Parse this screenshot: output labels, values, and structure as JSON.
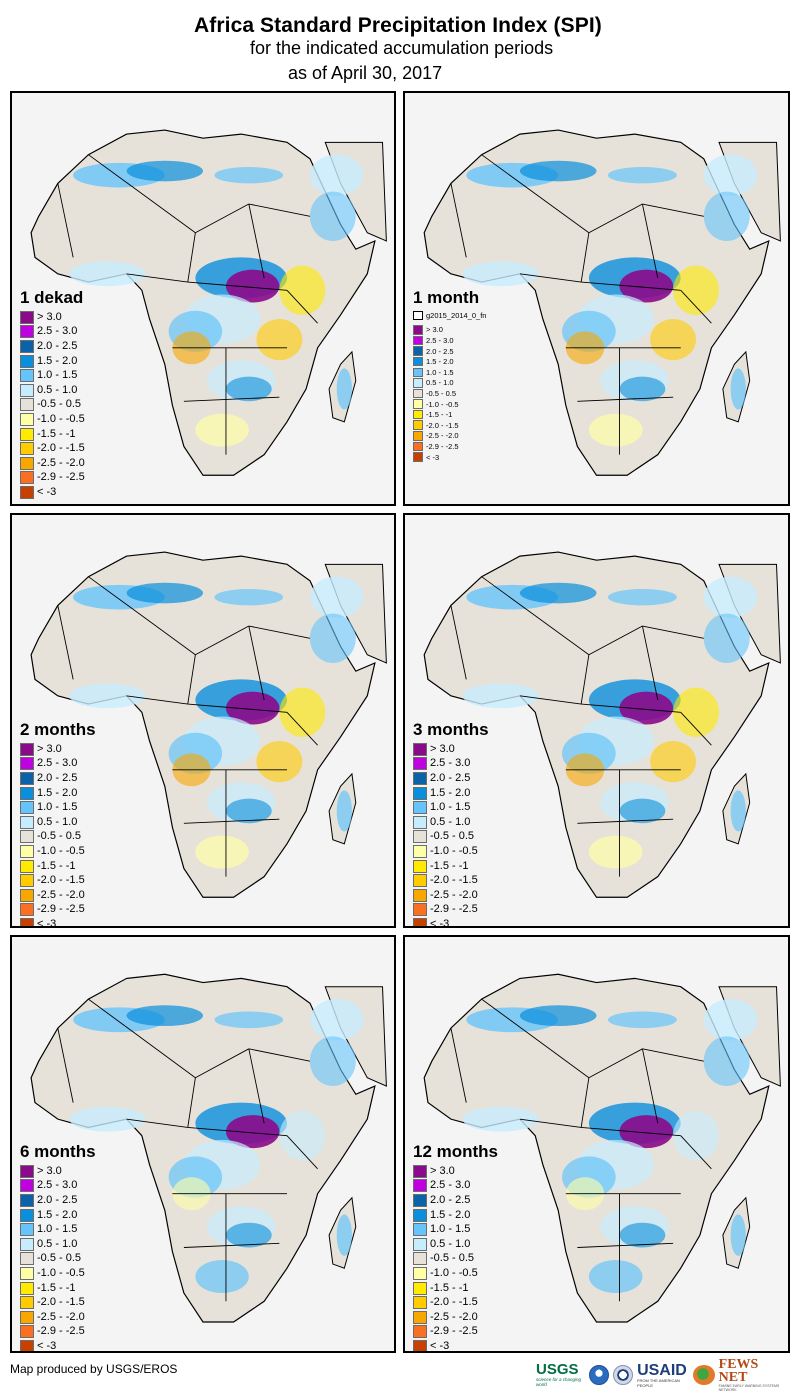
{
  "header": {
    "title": "Africa Standard Precipitation Index (SPI)",
    "subtitle": "for the indicated accumulation periods",
    "date_line": "as of April 30, 2017"
  },
  "legend_classes": [
    {
      "label": "> 3.0",
      "color": "#8b0a8b"
    },
    {
      "label": "2.5 - 3.0",
      "color": "#c000e0"
    },
    {
      "label": "2.0 - 2.5",
      "color": "#0a63a8"
    },
    {
      "label": "1.5 - 2.0",
      "color": "#0a8fdc"
    },
    {
      "label": "1.0 - 1.5",
      "color": "#66c4fa"
    },
    {
      "label": "0.5 - 1.0",
      "color": "#c7ecfd"
    },
    {
      "label": "-0.5 - 0.5",
      "color": "#e6e2d9"
    },
    {
      "label": "-1.0 - -0.5",
      "color": "#ffffa8"
    },
    {
      "label": "-1.5 - -1",
      "color": "#ffea00"
    },
    {
      "label": "-2.0 - -1.5",
      "color": "#ffcc00"
    },
    {
      "label": "-2.5 - -2.0",
      "color": "#f8a600"
    },
    {
      "label": "-2.9 - -2.5",
      "color": "#fa7022"
    },
    {
      "label": "< -3",
      "color": "#c84000"
    }
  ],
  "panels": [
    {
      "title": "1 dekad",
      "legend_extra": null
    },
    {
      "title": "1 month",
      "legend_extra": "g2015_2014_0_fn"
    },
    {
      "title": "2 months",
      "legend_extra": null
    },
    {
      "title": "3 months",
      "legend_extra": null
    },
    {
      "title": "6 months",
      "legend_extra": null
    },
    {
      "title": "12 months",
      "legend_extra": null
    }
  ],
  "map_colors": {
    "panel_background": "#f4f4f4",
    "land_neutral": "#e6e2d9",
    "border": "#000000"
  },
  "footer": {
    "credit": "Map produced by USGS/EROS",
    "logos": {
      "usgs": "USGS",
      "usgs_tagline": "science for a changing world",
      "noaa": "NOAA",
      "usaid": "USAID",
      "usaid_tagline": "FROM THE AMERICAN PEOPLE",
      "fewsnet": "FEWS NET",
      "fewsnet_tagline": "FAMINE EARLY WARNING SYSTEMS NETWORK"
    }
  }
}
